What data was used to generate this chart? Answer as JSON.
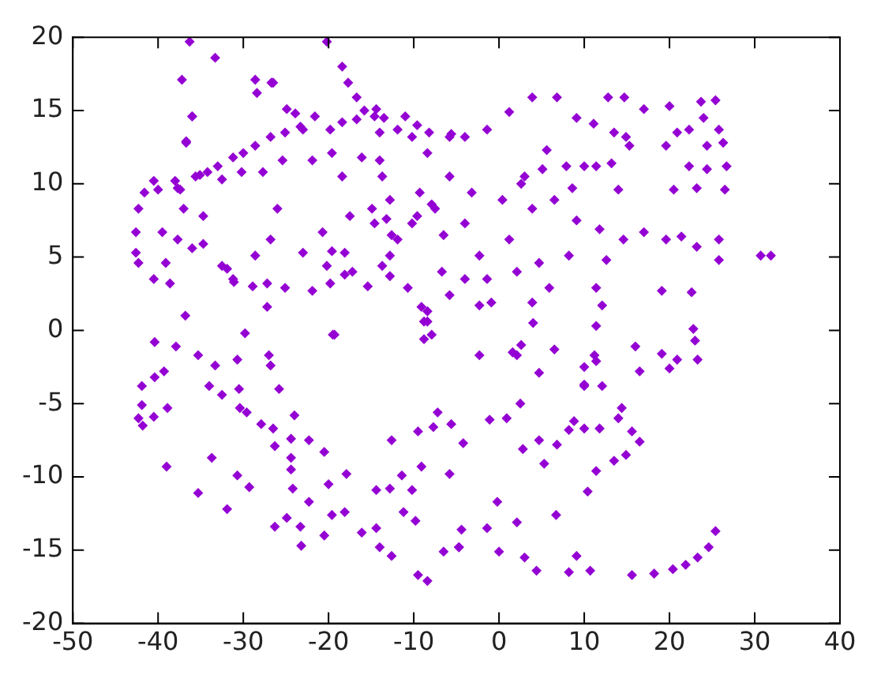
{
  "chart_data": {
    "type": "scatter",
    "marker": "diamond",
    "grid": false,
    "legend": false,
    "xlim": [
      -50,
      40
    ],
    "ylim": [
      -20,
      20
    ],
    "xticks": [
      -50,
      -40,
      -30,
      -20,
      -10,
      0,
      10,
      20,
      30,
      40
    ],
    "yticks": [
      -20,
      -15,
      -10,
      -5,
      0,
      5,
      10,
      15,
      20
    ],
    "series": [
      {
        "color": "#9400d3",
        "x": [
          -36.3,
          -33.3,
          -37.2,
          -36,
          -36.7,
          -28.6,
          -26.5,
          -20.2,
          -18.4,
          -17.7,
          -16.7,
          -15.8,
          -42.3,
          -42.6,
          -42.6,
          -42.3,
          -41.6,
          -40.5,
          -40,
          -38,
          -37.4,
          -35.6,
          -34.2,
          -33,
          -31.2,
          -30,
          -28.6,
          -26.8,
          -25.1,
          -23.9,
          -23,
          -21.6,
          -19.8,
          -18.4,
          -16.7,
          -14.6,
          -14,
          -11.9,
          -10.2,
          -8.4,
          -5.8,
          -4,
          -1.4,
          -37,
          -37.7,
          -39.1,
          -38.6,
          -40.5,
          -36,
          -34.7,
          -31.9,
          -31.1,
          -28.6,
          -26.8,
          -26,
          -25.1,
          -23,
          -20.7,
          -19.8,
          -18.1,
          -15.4,
          -12.8,
          -10.7,
          -19.5,
          -13.7,
          -12.8,
          -14.6,
          -11.9,
          -10.2,
          -9.3,
          -7.5,
          -5.8,
          -4,
          -3.2,
          -2.3,
          -4,
          -8.4,
          -7.9,
          -5.8,
          -0.9,
          -1.4,
          2.1,
          1.2,
          0.4,
          3,
          3.9,
          3.9,
          6.8,
          1.2,
          9.1,
          11.1,
          12.8,
          14.7,
          17,
          20,
          23.7,
          25.4,
          24,
          25.8,
          26.3,
          24.4,
          22.3,
          20.9,
          19.6,
          22.3,
          24.4,
          26.7,
          26.5,
          23.2,
          20.5,
          13.5,
          14.9,
          15.3,
          13.2,
          11.4,
          10,
          7.9,
          5.6,
          5.1,
          2.6,
          6.5,
          8.6,
          9.1,
          14,
          11.8,
          14.6,
          17,
          19.6,
          21.4,
          23.2,
          25.8,
          25.8,
          30.7,
          31.9,
          12.6,
          8.2,
          4.7,
          5.9,
          11.4,
          12.1,
          19.1,
          22.6,
          11.4,
          3.9,
          -2.3,
          -2.3,
          2.1,
          4.7,
          2.6,
          6.5,
          10,
          11.4,
          11.4,
          13.5,
          14.9,
          16.5,
          15.6,
          14.4,
          14,
          11.8,
          10,
          8.8,
          8.2,
          6.8,
          5.3,
          4.7,
          2.8,
          2.5,
          0.9,
          -1.1,
          -4.2,
          10,
          12.1,
          10.4,
          -0.2,
          -4.4,
          -4.7,
          -1.4,
          0,
          2.1,
          3,
          4.4,
          6.7,
          8.2,
          9.1,
          10.7,
          15.6,
          18.2,
          20.4,
          21.9,
          23.3,
          24.6,
          25.4,
          19.1,
          20,
          20.9,
          22.8,
          23,
          23.3,
          16,
          16.5,
          10,
          11.2,
          4,
          1.6,
          -40.4,
          -37.9,
          -41.9,
          -40.4,
          -39.3,
          -41.9,
          -42.3,
          -41.8,
          -40.5,
          -38.9,
          -39,
          -35.3,
          -33.3,
          -34,
          -32.5,
          -30.7,
          -29.8,
          -30.5,
          -30.4,
          -29.6,
          -27,
          -26.8,
          -25.8,
          -27.9,
          -26.5,
          -24,
          -26.3,
          -24.4,
          -24.4,
          -24.4,
          -24.2,
          -22.3,
          -20.5,
          -22.3,
          -24.9,
          -23.3,
          -23.2,
          -26.3,
          -35.3,
          -33.7,
          -31.9,
          -30.7,
          -29.3,
          -20,
          -19.6,
          -20.5,
          -17.9,
          -18.1,
          -16.1,
          -14.4,
          -14,
          -12.6,
          -14.4,
          -12.8,
          -11.4,
          -11.2,
          -10.2,
          -9.8,
          -9.5,
          -8.4,
          -12.6,
          -9.1,
          -9.5,
          -7.7,
          -7.2,
          -6.5,
          -4.7,
          -5.8,
          -19.3,
          -8.8,
          -8.8,
          -5.6,
          -24.9,
          -23.3,
          -14.4,
          -13.5,
          -11,
          -9.6,
          -8.2,
          -5.6,
          -14,
          -16.1,
          -19.6,
          -21.9,
          -25.4,
          -27.7,
          -30.2,
          -32.5,
          -35.1,
          -37.7,
          -18.4,
          -14.9,
          -13.2,
          -12.6,
          -12.8,
          -13.7,
          -17.2,
          -20.2,
          -18.1,
          -17.5,
          -9.6,
          -7.9,
          -6.5,
          -6.7,
          -9.1,
          -8.4,
          -27.2,
          -28.9,
          -27.2,
          -32.5,
          -34.7,
          -39.5,
          -36.8,
          -31.2,
          -21.9,
          -19.6,
          -26.7,
          -28.4,
          -36,
          -36.7
        ],
        "values": [
          19.7,
          18.6,
          17.1,
          14.6,
          12.8,
          17.1,
          16.9,
          19.7,
          18,
          16.9,
          15.9,
          15,
          8.3,
          6.7,
          5.3,
          4.6,
          9.4,
          10.2,
          9.6,
          10.2,
          9.6,
          10.5,
          10.8,
          11.2,
          11.8,
          12.1,
          12.6,
          13.2,
          13.5,
          14.8,
          13.7,
          14.6,
          13.7,
          14.2,
          14.4,
          14.6,
          13.5,
          13.7,
          13.2,
          12.1,
          13.2,
          13.2,
          13.7,
          8.3,
          6.2,
          4.6,
          3.2,
          3.5,
          5.6,
          7.8,
          4.2,
          3.3,
          5.1,
          6.2,
          8.3,
          2.9,
          5.3,
          6.7,
          3.2,
          3.8,
          3,
          3.7,
          2.9,
          -0.3,
          10.5,
          8.9,
          7.3,
          6.2,
          7.3,
          9.4,
          8.3,
          10.5,
          7.3,
          9.4,
          5.1,
          3.5,
          1.3,
          -0.3,
          2.4,
          1.9,
          3.5,
          4,
          6.2,
          8.9,
          10.5,
          8.3,
          15.9,
          15.9,
          14.9,
          14.5,
          14.1,
          15.9,
          15.9,
          15.1,
          15.3,
          15.6,
          15.7,
          14.5,
          13.7,
          12.8,
          12.6,
          13.7,
          13.5,
          12.6,
          11.2,
          11,
          11.2,
          9.6,
          9.7,
          9.6,
          13.5,
          13.2,
          12.6,
          11.4,
          11.2,
          11.2,
          11.2,
          12.3,
          11,
          10,
          8.9,
          9.7,
          7.5,
          9.6,
          6.9,
          6.2,
          6.7,
          6.2,
          6.4,
          5.7,
          6.2,
          4.8,
          5.1,
          5.1,
          4.8,
          5.1,
          4.6,
          2.9,
          2.9,
          1.7,
          2.7,
          2.6,
          0.3,
          1.9,
          1.7,
          -1.7,
          -1.7,
          -2.9,
          -1,
          -1.3,
          -3.7,
          -2.1,
          -9.6,
          -8.9,
          -8.5,
          -7.6,
          -6.9,
          -5.3,
          -6,
          -6.7,
          -6.7,
          -6.2,
          -6.8,
          -7.8,
          -9.1,
          -7.5,
          -8.1,
          -5,
          -6,
          -6.1,
          -7.7,
          -3.8,
          -3.8,
          -11,
          -11.7,
          -13.6,
          -14.8,
          -13.5,
          -15.1,
          -13.1,
          -15.5,
          -16.4,
          -12.6,
          -16.5,
          -15.4,
          -16.4,
          -16.7,
          -16.6,
          -16.3,
          -16,
          -15.5,
          -14.8,
          -13.7,
          -1.6,
          -2.6,
          -2,
          0.1,
          -0.7,
          -2,
          -1.1,
          -2.8,
          -2.5,
          -1.7,
          0.5,
          -1.5,
          -0.8,
          -1.1,
          -3.8,
          -3.2,
          -2.8,
          -5.1,
          -6,
          -6.5,
          -5.9,
          -5.3,
          -9.3,
          -1.7,
          -2.4,
          -3.8,
          -4.4,
          -2,
          -0.2,
          -4,
          -5.3,
          -5.6,
          -1.7,
          -2.4,
          -4,
          -6.4,
          -6.7,
          -5.8,
          -7.9,
          -7.4,
          -8.7,
          -9.5,
          -10.8,
          -7.5,
          -8.3,
          -11.7,
          -12.8,
          -13.4,
          -14.7,
          -13.4,
          -11.1,
          -8.7,
          -12.2,
          -9.9,
          -10.7,
          -10.5,
          -12.6,
          -14,
          -9.8,
          -12.4,
          -13.8,
          -13.5,
          -14.8,
          -15.4,
          -10.9,
          -10.8,
          -9.9,
          -12.4,
          -10.9,
          -13,
          -16.7,
          -17.1,
          -7.5,
          -9.3,
          -6.9,
          -6.6,
          -5.6,
          -15.1,
          -14.8,
          -9.8,
          -0.3,
          -0.6,
          0.6,
          -6.4,
          15.1,
          13.9,
          15.1,
          14.5,
          14.6,
          14,
          13.5,
          13.4,
          11.6,
          11.8,
          12.1,
          11.6,
          11.6,
          10.8,
          10.8,
          10.3,
          10.6,
          9.7,
          10.5,
          8.3,
          7.6,
          6.5,
          5.1,
          4.4,
          4,
          4.4,
          5.3,
          7.8,
          7.8,
          8.6,
          6.5,
          4,
          1.6,
          0.6,
          1.6,
          3,
          3.2,
          4.4,
          5.9,
          6.7,
          1,
          3.5,
          2.7,
          5.4,
          16.9,
          16.2,
          14.6,
          12.9
        ]
      }
    ]
  }
}
